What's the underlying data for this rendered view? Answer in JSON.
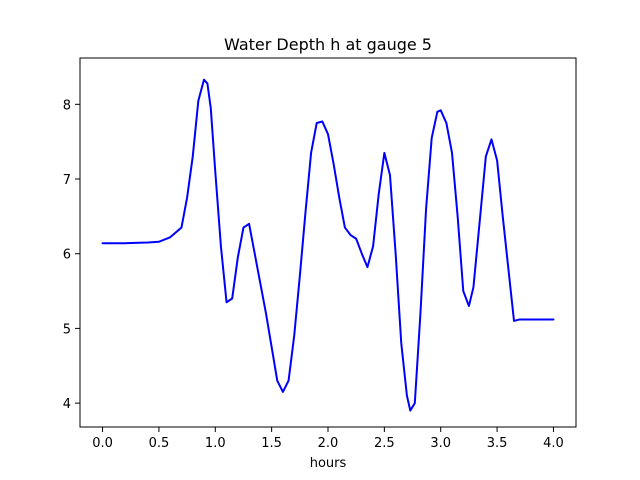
{
  "chart_data": {
    "type": "line",
    "title": "Water Depth h at gauge 5",
    "xlabel": "hours",
    "ylabel": "",
    "xlim": [
      -0.2,
      4.2
    ],
    "ylim": [
      3.68,
      8.62
    ],
    "x_ticks": [
      0.0,
      0.5,
      1.0,
      1.5,
      2.0,
      2.5,
      3.0,
      3.5,
      4.0
    ],
    "x_tick_labels": [
      "0.0",
      "0.5",
      "1.0",
      "1.5",
      "2.0",
      "2.5",
      "3.0",
      "3.5",
      "4.0"
    ],
    "y_ticks": [
      4,
      5,
      6,
      7,
      8
    ],
    "y_tick_labels": [
      "4",
      "5",
      "6",
      "7",
      "8"
    ],
    "grid": false,
    "series": [
      {
        "color": "#0000ff",
        "x": [
          0.0,
          0.2,
          0.4,
          0.5,
          0.6,
          0.7,
          0.75,
          0.8,
          0.85,
          0.9,
          0.93,
          0.96,
          1.0,
          1.05,
          1.1,
          1.15,
          1.2,
          1.25,
          1.3,
          1.35,
          1.4,
          1.45,
          1.5,
          1.55,
          1.6,
          1.65,
          1.7,
          1.75,
          1.8,
          1.85,
          1.9,
          1.95,
          2.0,
          2.05,
          2.1,
          2.15,
          2.2,
          2.25,
          2.3,
          2.35,
          2.4,
          2.45,
          2.5,
          2.55,
          2.6,
          2.65,
          2.7,
          2.73,
          2.77,
          2.82,
          2.87,
          2.92,
          2.97,
          3.0,
          3.05,
          3.1,
          3.15,
          3.2,
          3.25,
          3.29,
          3.35,
          3.4,
          3.45,
          3.5,
          3.55,
          3.6,
          3.65,
          3.7,
          3.75,
          3.8,
          3.85,
          3.9,
          3.95,
          4.0
        ],
        "y": [
          6.14,
          6.14,
          6.15,
          6.16,
          6.22,
          6.35,
          6.75,
          7.3,
          8.05,
          8.33,
          8.28,
          7.95,
          7.1,
          6.1,
          5.35,
          5.4,
          5.95,
          6.35,
          6.4,
          6.0,
          5.6,
          5.2,
          4.75,
          4.3,
          4.15,
          4.3,
          4.9,
          5.7,
          6.55,
          7.35,
          7.75,
          7.77,
          7.6,
          7.2,
          6.75,
          6.35,
          6.25,
          6.2,
          6.0,
          5.82,
          6.1,
          6.8,
          7.35,
          7.05,
          6.0,
          4.8,
          4.1,
          3.9,
          4.0,
          5.2,
          6.6,
          7.55,
          7.9,
          7.92,
          7.75,
          7.35,
          6.5,
          5.5,
          5.3,
          5.55,
          6.5,
          7.3,
          7.53,
          7.25,
          6.5,
          5.8,
          5.1,
          5.12,
          5.12,
          5.12,
          5.12,
          5.12,
          5.12,
          5.12
        ]
      }
    ]
  }
}
